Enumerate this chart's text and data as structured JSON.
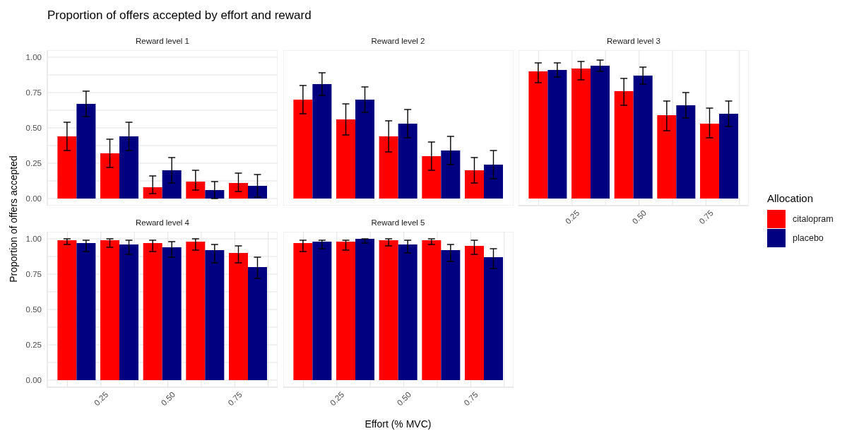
{
  "chart_data": [
    {
      "type": "bar",
      "title": "Proportion of offers accepted by effort and reward",
      "subtitle": "Reward level 1",
      "ylabel": "Proportion of offers accepted",
      "x": [
        0.16,
        0.32,
        0.48,
        0.64,
        0.8
      ],
      "series": [
        {
          "color": "#ff0000",
          "values": [
            0.44,
            0.32,
            0.08,
            0.12,
            0.11
          ],
          "errors": [
            0.1,
            0.1,
            [
              0.035,
              0.16
            ],
            [
              0.06,
              0.2
            ],
            [
              0.05,
              0.18
            ]
          ]
        },
        {
          "color": "#000080",
          "values": [
            0.67,
            0.44,
            0.2,
            0.06,
            0.09
          ],
          "errors": [
            0.09,
            0.1,
            0.09,
            0.06,
            0.08
          ]
        }
      ],
      "xlim": [
        0.05,
        0.91
      ],
      "ylim": [
        -0.05,
        1.05
      ],
      "yticks": [
        {
          "value": 0,
          "label": "0.00"
        },
        {
          "value": 0.125,
          "label": null
        },
        {
          "value": 0.25,
          "label": "0.25"
        },
        {
          "value": 0.375,
          "label": null
        },
        {
          "value": 0.5,
          "label": "0.50"
        },
        {
          "value": 0.625,
          "label": null
        },
        {
          "value": 0.75,
          "label": "0.75"
        },
        {
          "value": 0.875,
          "label": null
        },
        {
          "value": 1,
          "label": "1.00"
        }
      ],
      "grid": true,
      "tick_labels": "y"
    },
    {
      "type": "bar",
      "subtitle": "Reward level 2",
      "x": [
        0.16,
        0.32,
        0.48,
        0.64,
        0.8
      ],
      "series": [
        {
          "color": "#ff0000",
          "values": [
            0.7,
            0.56,
            0.44,
            0.3,
            0.2
          ],
          "errors": [
            0.1,
            0.11,
            0.11,
            0.1,
            0.09
          ]
        },
        {
          "color": "#000080",
          "values": [
            0.81,
            0.7,
            0.53,
            0.34,
            0.24
          ],
          "errors": [
            0.08,
            0.09,
            0.1,
            0.1,
            0.1
          ]
        }
      ],
      "xlim": [
        0.05,
        0.91
      ],
      "ylim": [
        -0.05,
        1.05
      ],
      "grid": true,
      "tick_labels": false
    },
    {
      "type": "bar",
      "subtitle": "Reward level 3",
      "legend": "right",
      "legend_title": "Allocation",
      "x": [
        0.16,
        0.32,
        0.48,
        0.64,
        0.8
      ],
      "series": [
        {
          "name": "citalopram",
          "color": "#ff0000",
          "values": [
            0.9,
            0.92,
            0.76,
            0.59,
            0.53
          ],
          "errors": [
            [
              0.82,
              0.96
            ],
            [
              0.84,
              0.97
            ],
            [
              0.66,
              0.85
            ],
            [
              0.48,
              0.69
            ],
            [
              0.43,
              0.64
            ]
          ]
        },
        {
          "name": "placebo",
          "color": "#000080",
          "values": [
            0.91,
            0.94,
            0.87,
            0.66,
            0.6
          ],
          "errors": [
            0.05,
            0.04,
            0.06,
            0.09,
            0.09
          ]
        }
      ],
      "xlim": [
        0.05,
        0.91
      ],
      "ylim": [
        -0.05,
        1.05
      ],
      "xticks": [
        {
          "value": 0.125,
          "label": null
        },
        {
          "value": 0.25,
          "label": "0.25"
        },
        {
          "value": 0.375,
          "label": null
        },
        {
          "value": 0.5,
          "label": "0.50"
        },
        {
          "value": 0.625,
          "label": null
        },
        {
          "value": 0.75,
          "label": "0.75"
        },
        {
          "value": 0.875,
          "label": null
        }
      ],
      "grid": true,
      "tick_labels": "x"
    },
    {
      "type": "bar",
      "subtitle": "Reward level 4",
      "x": [
        0.16,
        0.32,
        0.48,
        0.64,
        0.8
      ],
      "series": [
        {
          "color": "#ff0000",
          "values": [
            0.99,
            0.99,
            0.97,
            0.98,
            0.9
          ],
          "errors": [
            [
              0.96,
              1.0
            ],
            [
              0.94,
              1.0
            ],
            [
              0.91,
              0.99
            ],
            [
              0.92,
              1.0
            ],
            [
              0.83,
              0.95
            ]
          ]
        },
        {
          "color": "#000080",
          "values": [
            0.97,
            0.96,
            0.94,
            0.92,
            0.8
          ],
          "errors": [
            [
              0.91,
              0.99
            ],
            [
              0.89,
              0.99
            ],
            [
              0.87,
              0.98
            ],
            [
              0.83,
              0.96
            ],
            [
              0.72,
              0.87
            ]
          ]
        }
      ],
      "xlim": [
        0.05,
        0.91
      ],
      "ylim": [
        -0.05,
        1.05
      ],
      "xticks": [
        {
          "value": 0.125,
          "label": null
        },
        {
          "value": 0.25,
          "label": "0.25"
        },
        {
          "value": 0.375,
          "label": null
        },
        {
          "value": 0.5,
          "label": "0.50"
        },
        {
          "value": 0.625,
          "label": null
        },
        {
          "value": 0.75,
          "label": "0.75"
        },
        {
          "value": 0.875,
          "label": null
        }
      ],
      "yticks": [
        {
          "value": 0,
          "label": "0.00"
        },
        {
          "value": 0.125,
          "label": null
        },
        {
          "value": 0.25,
          "label": "0.25"
        },
        {
          "value": 0.375,
          "label": null
        },
        {
          "value": 0.5,
          "label": "0.50"
        },
        {
          "value": 0.625,
          "label": null
        },
        {
          "value": 0.75,
          "label": "0.75"
        },
        {
          "value": 0.875,
          "label": null
        },
        {
          "value": 1,
          "label": "1.00"
        }
      ],
      "grid": true
    },
    {
      "type": "bar",
      "subtitle": "Reward level 5",
      "xlabel": "Effort (% MVC)",
      "x": [
        0.16,
        0.32,
        0.48,
        0.64,
        0.8
      ],
      "series": [
        {
          "color": "#ff0000",
          "values": [
            0.97,
            0.98,
            0.99,
            0.99,
            0.95
          ],
          "errors": [
            [
              0.91,
              0.99
            ],
            [
              0.92,
              0.99
            ],
            [
              0.95,
              1.0
            ],
            [
              0.96,
              1.0
            ],
            [
              0.89,
              0.99
            ]
          ]
        },
        {
          "color": "#000080",
          "values": [
            0.98,
            1.0,
            0.96,
            0.92,
            0.87
          ],
          "errors": [
            [
              0.93,
              0.99
            ],
            [
              0.97,
              1.0
            ],
            [
              0.9,
              0.99
            ],
            [
              0.84,
              0.96
            ],
            [
              0.79,
              0.93
            ]
          ]
        }
      ],
      "xlim": [
        0.05,
        0.91
      ],
      "ylim": [
        -0.05,
        1.05
      ],
      "xticks": [
        {
          "value": 0.125,
          "label": null
        },
        {
          "value": 0.25,
          "label": "0.25"
        },
        {
          "value": 0.375,
          "label": null
        },
        {
          "value": 0.5,
          "label": "0.50"
        },
        {
          "value": 0.625,
          "label": null
        },
        {
          "value": 0.75,
          "label": "0.75"
        },
        {
          "value": 0.875,
          "label": null
        }
      ],
      "grid": true,
      "tick_labels": "x"
    }
  ]
}
